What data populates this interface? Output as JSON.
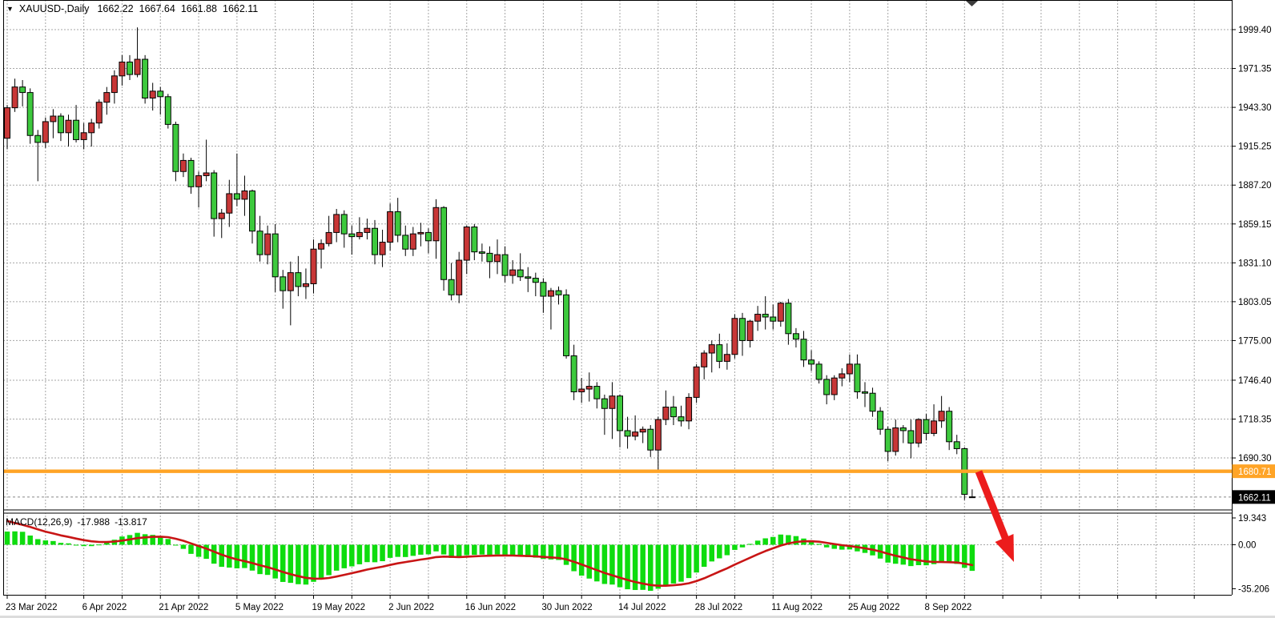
{
  "header": {
    "dropdown_icon": "▼",
    "symbol_period": "XAUUSD-,Daily",
    "open": "1662.22",
    "high": "1667.64",
    "low": "1661.88",
    "close": "1662.11"
  },
  "macd_panel": {
    "label": "MACD(12,26,9)",
    "macd_value": "-17.988",
    "signal_value": "-13.817",
    "scale": {
      "max": "19.343",
      "zero": "0.00",
      "min": "-35.206"
    }
  },
  "price_axis": {
    "labels": [
      "1999.40",
      "1971.35",
      "1943.30",
      "1915.25",
      "1887.20",
      "1859.15",
      "1831.10",
      "1803.05",
      "1775.00",
      "1746.40",
      "1718.35",
      "1690.30"
    ],
    "current_price": "1662.11",
    "support_price": "1680.71"
  },
  "time_axis": {
    "labels": [
      "23 Mar 2022",
      "6 Apr 2022",
      "21 Apr 2022",
      "5 May 2022",
      "19 May 2022",
      "2 Jun 2022",
      "16 Jun 2022",
      "30 Jun 2022",
      "14 Jul 2022",
      "28 Jul 2022",
      "11 Aug 2022",
      "25 Aug 2022",
      "8 Sep 2022"
    ]
  },
  "colors": {
    "candle_up": "#C83737",
    "candle_down": "#3DC93D",
    "candle_border": "#000000",
    "macd_histogram": "#0EDC0E",
    "macd_signal": "#C81515",
    "support_line": "#FFA426",
    "arrow": "#EC1C1C",
    "grid": "#A6A6A6",
    "current_price_line": "#888888",
    "current_price_badge_bg": "#000000",
    "badge_text": "#FFFFFF",
    "axis_text": "#000000"
  },
  "chart_data": {
    "type": "candlestick",
    "symbol": "XAUUSD-",
    "timeframe": "Daily",
    "x_labels_every": 10,
    "x_labels": [
      "23 Mar 2022",
      "6 Apr 2022",
      "21 Apr 2022",
      "5 May 2022",
      "19 May 2022",
      "2 Jun 2022",
      "16 Jun 2022",
      "30 Jun 2022",
      "14 Jul 2022",
      "28 Jul 2022",
      "11 Aug 2022",
      "25 Aug 2022",
      "8 Sep 2022"
    ],
    "price_gridlines": [
      1999.4,
      1971.35,
      1943.3,
      1915.25,
      1887.2,
      1859.15,
      1831.1,
      1803.05,
      1775.0,
      1746.4,
      1718.35,
      1690.3
    ],
    "support_line_value": 1680.71,
    "current_price": 1662.11,
    "last_bar_ohlc": [
      1662.22,
      1667.64,
      1661.88,
      1662.11
    ],
    "macd": {
      "fast": 12,
      "slow": 26,
      "signal": 9,
      "value": -17.988,
      "signal_value": -13.817,
      "scale_max": 19.343,
      "scale_min": -35.206
    },
    "candles": [
      [
        1921,
        1945,
        1913,
        1943
      ],
      [
        1943,
        1964,
        1940,
        1958
      ],
      [
        1958,
        1963,
        1944,
        1954
      ],
      [
        1954,
        1957,
        1917,
        1923
      ],
      [
        1923,
        1927,
        1890,
        1918
      ],
      [
        1918,
        1936,
        1914,
        1933
      ],
      [
        1933,
        1942,
        1921,
        1937
      ],
      [
        1937,
        1939,
        1919,
        1925
      ],
      [
        1925,
        1938,
        1915,
        1934
      ],
      [
        1934,
        1945,
        1918,
        1920
      ],
      [
        1920,
        1932,
        1913,
        1925
      ],
      [
        1925,
        1935,
        1915,
        1932
      ],
      [
        1932,
        1949,
        1928,
        1947
      ],
      [
        1947,
        1958,
        1938,
        1954
      ],
      [
        1954,
        1970,
        1946,
        1966
      ],
      [
        1966,
        1981,
        1959,
        1976
      ],
      [
        1976,
        1981,
        1963,
        1967
      ],
      [
        1967,
        2001,
        1965,
        1978
      ],
      [
        1978,
        1981,
        1946,
        1950
      ],
      [
        1950,
        1961,
        1941,
        1955
      ],
      [
        1955,
        1958,
        1938,
        1951
      ],
      [
        1951,
        1953,
        1928,
        1931
      ],
      [
        1931,
        1933,
        1890,
        1897
      ],
      [
        1897,
        1910,
        1893,
        1905
      ],
      [
        1905,
        1907,
        1881,
        1886
      ],
      [
        1886,
        1897,
        1871,
        1894
      ],
      [
        1894,
        1920,
        1890,
        1896
      ],
      [
        1896,
        1898,
        1850,
        1863
      ],
      [
        1863,
        1870,
        1849,
        1867
      ],
      [
        1867,
        1891,
        1857,
        1881
      ],
      [
        1881,
        1910,
        1872,
        1877
      ],
      [
        1877,
        1894,
        1865,
        1883
      ],
      [
        1883,
        1884,
        1845,
        1854
      ],
      [
        1854,
        1865,
        1832,
        1837
      ],
      [
        1837,
        1858,
        1830,
        1852
      ],
      [
        1852,
        1859,
        1810,
        1821
      ],
      [
        1821,
        1826,
        1798,
        1811
      ],
      [
        1811,
        1832,
        1786,
        1824
      ],
      [
        1824,
        1836,
        1807,
        1814
      ],
      [
        1814,
        1827,
        1805,
        1816
      ],
      [
        1816,
        1848,
        1809,
        1841
      ],
      [
        1841,
        1848,
        1827,
        1845
      ],
      [
        1845,
        1865,
        1843,
        1853
      ],
      [
        1853,
        1870,
        1846,
        1866
      ],
      [
        1866,
        1869,
        1842,
        1852
      ],
      [
        1852,
        1858,
        1837,
        1850
      ],
      [
        1850,
        1864,
        1848,
        1853
      ],
      [
        1853,
        1863,
        1848,
        1856
      ],
      [
        1856,
        1862,
        1830,
        1837
      ],
      [
        1837,
        1855,
        1828,
        1846
      ],
      [
        1846,
        1874,
        1840,
        1868
      ],
      [
        1868,
        1878,
        1846,
        1851
      ],
      [
        1851,
        1858,
        1836,
        1841
      ],
      [
        1841,
        1857,
        1836,
        1852
      ],
      [
        1852,
        1860,
        1843,
        1853
      ],
      [
        1853,
        1856,
        1838,
        1847
      ],
      [
        1847,
        1877,
        1834,
        1871
      ],
      [
        1871,
        1872,
        1811,
        1819
      ],
      [
        1819,
        1831,
        1804,
        1808
      ],
      [
        1808,
        1839,
        1802,
        1833
      ],
      [
        1833,
        1858,
        1823,
        1857
      ],
      [
        1857,
        1859,
        1833,
        1839
      ],
      [
        1839,
        1845,
        1832,
        1838
      ],
      [
        1838,
        1843,
        1820,
        1832
      ],
      [
        1832,
        1848,
        1823,
        1837
      ],
      [
        1837,
        1843,
        1817,
        1822
      ],
      [
        1822,
        1833,
        1816,
        1826
      ],
      [
        1826,
        1838,
        1818,
        1821
      ],
      [
        1821,
        1828,
        1810,
        1820
      ],
      [
        1820,
        1824,
        1807,
        1817
      ],
      [
        1817,
        1820,
        1795,
        1807
      ],
      [
        1807,
        1813,
        1783,
        1811
      ],
      [
        1811,
        1814,
        1801,
        1808
      ],
      [
        1808,
        1812,
        1762,
        1764
      ],
      [
        1764,
        1772,
        1732,
        1738
      ],
      [
        1738,
        1748,
        1730,
        1740
      ],
      [
        1740,
        1752,
        1731,
        1742
      ],
      [
        1742,
        1745,
        1726,
        1733
      ],
      [
        1733,
        1736,
        1707,
        1726
      ],
      [
        1726,
        1745,
        1704,
        1735
      ],
      [
        1735,
        1736,
        1698,
        1710
      ],
      [
        1710,
        1720,
        1697,
        1706
      ],
      [
        1706,
        1721,
        1703,
        1709
      ],
      [
        1709,
        1713,
        1701,
        1711
      ],
      [
        1711,
        1714,
        1691,
        1696
      ],
      [
        1696,
        1720,
        1680,
        1718
      ],
      [
        1718,
        1739,
        1714,
        1727
      ],
      [
        1727,
        1735,
        1714,
        1720
      ],
      [
        1720,
        1728,
        1713,
        1717
      ],
      [
        1717,
        1737,
        1711,
        1734
      ],
      [
        1734,
        1758,
        1730,
        1756
      ],
      [
        1756,
        1768,
        1747,
        1766
      ],
      [
        1766,
        1775,
        1752,
        1772
      ],
      [
        1772,
        1780,
        1755,
        1760
      ],
      [
        1760,
        1773,
        1754,
        1765
      ],
      [
        1765,
        1794,
        1762,
        1791
      ],
      [
        1791,
        1795,
        1764,
        1775
      ],
      [
        1775,
        1790,
        1770,
        1789
      ],
      [
        1789,
        1800,
        1782,
        1794
      ],
      [
        1794,
        1807,
        1783,
        1792
      ],
      [
        1792,
        1801,
        1783,
        1789
      ],
      [
        1789,
        1803,
        1785,
        1802
      ],
      [
        1802,
        1805,
        1772,
        1780
      ],
      [
        1780,
        1784,
        1770,
        1776
      ],
      [
        1776,
        1782,
        1756,
        1761
      ],
      [
        1761,
        1768,
        1753,
        1758
      ],
      [
        1758,
        1760,
        1744,
        1747
      ],
      [
        1747,
        1750,
        1729,
        1736
      ],
      [
        1736,
        1750,
        1732,
        1748
      ],
      [
        1748,
        1755,
        1742,
        1751
      ],
      [
        1751,
        1765,
        1745,
        1758
      ],
      [
        1758,
        1765,
        1733,
        1738
      ],
      [
        1738,
        1745,
        1727,
        1737
      ],
      [
        1737,
        1741,
        1720,
        1724
      ],
      [
        1724,
        1727,
        1707,
        1711
      ],
      [
        1711,
        1713,
        1688,
        1695
      ],
      [
        1695,
        1718,
        1692,
        1712
      ],
      [
        1712,
        1714,
        1701,
        1710
      ],
      [
        1710,
        1718,
        1690,
        1701
      ],
      [
        1701,
        1719,
        1698,
        1718
      ],
      [
        1718,
        1722,
        1703,
        1708
      ],
      [
        1708,
        1729,
        1706,
        1717
      ],
      [
        1717,
        1735,
        1712,
        1724
      ],
      [
        1724,
        1727,
        1696,
        1702
      ],
      [
        1702,
        1707,
        1693,
        1697
      ],
      [
        1697,
        1698,
        1660,
        1664
      ],
      [
        1662.22,
        1667.64,
        1661.88,
        1662.11
      ]
    ]
  }
}
